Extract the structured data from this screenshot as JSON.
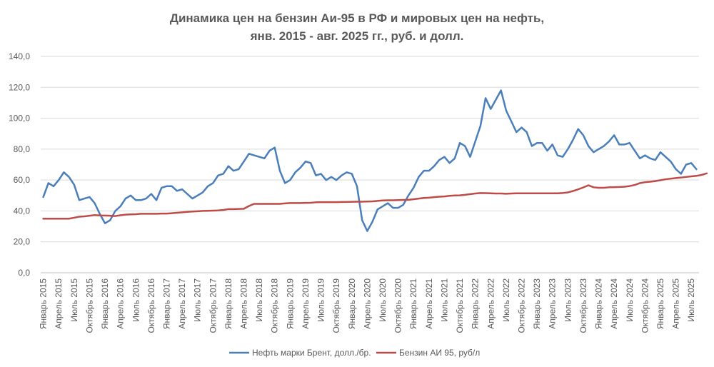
{
  "chart_data": {
    "type": "line",
    "title": "Динамика  цен на бензин Аи-95 в РФ и мировых цен на нефть,",
    "subtitle": "янв. 2015 - авг. 2025 гг., руб. и долл.",
    "ylim": [
      0,
      140
    ],
    "yticks": [
      "0,0",
      "20,0",
      "40,0",
      "60,0",
      "80,0",
      "100,0",
      "120,0",
      "140,0"
    ],
    "grid": true,
    "legend_position": "bottom",
    "x_tick_labels": [
      "Январь 2015",
      "Апрель 2015",
      "Июль 2015",
      "Октябрь 2015",
      "Январь 2016",
      "Апрель 2016",
      "Июль 2016",
      "Октябрь 2016",
      "Январь 2017",
      "Апрель 2017",
      "Июль 2017",
      "Октябрь 2017",
      "Январь 2018",
      "Апрель 2018",
      "Июль 2018",
      "Октябрь 2018",
      "Январь 2019",
      "Апрель 2019",
      "Июль 2019",
      "Октябрь 2019",
      "Январь 2020",
      "Апрель 2020",
      "Июль 2020",
      "Октябрь 2020",
      "Январь 2021",
      "Апрель 2021",
      "Июль 2021",
      "Октябрь 2021",
      "Январь 2022",
      "Апрель 2022",
      "Июль 2022",
      "Октябрь 2022",
      "Январь 2023",
      "Апрель 2023",
      "Июль 2023",
      "Октябрь 2023",
      "Январь 2024",
      "Апрель 2024",
      "Июль 2024",
      "Октябрь 2024",
      "Январь 2025",
      "Апрель 2025",
      "Июль 2025"
    ],
    "series": [
      {
        "name": "Нефть марки Брент, долл./бр.",
        "color": "#4a7ebb",
        "values": [
          49.0,
          58.0,
          56.0,
          60.0,
          65.0,
          62.0,
          57.0,
          47.0,
          48.0,
          49.0,
          45.0,
          38.0,
          32.0,
          34.0,
          40.0,
          43.0,
          48.0,
          50.0,
          47.0,
          47.0,
          48.0,
          51.0,
          47.0,
          55.0,
          56.0,
          56.0,
          53.0,
          54.0,
          51.0,
          48.0,
          50.0,
          52.0,
          56.0,
          58.0,
          63.0,
          64.0,
          69.0,
          66.0,
          67.0,
          72.0,
          77.0,
          76.0,
          75.0,
          74.0,
          79.0,
          81.0,
          66.0,
          58.0,
          60.0,
          65.0,
          68.0,
          72.0,
          71.0,
          63.0,
          64.0,
          60.0,
          62.0,
          60.0,
          63.0,
          65.0,
          64.0,
          56.0,
          34.0,
          27.0,
          33.0,
          41.0,
          43.0,
          45.0,
          42.0,
          42.0,
          44.0,
          50.0,
          55.0,
          62.0,
          66.0,
          66.0,
          69.0,
          73.0,
          75.0,
          71.0,
          74.0,
          84.0,
          82.0,
          75.0,
          85.0,
          95.0,
          113.0,
          106.0,
          112.0,
          118.0,
          105.0,
          98.0,
          91.0,
          94.0,
          91.0,
          82.0,
          84.0,
          84.0,
          79.0,
          83.0,
          76.0,
          75.0,
          80.0,
          86.0,
          93.0,
          89.0,
          82.0,
          78.0,
          80.0,
          82.0,
          85.0,
          89.0,
          83.0,
          83.0,
          84.0,
          79.0,
          74.0,
          76.0,
          74.0,
          73.0,
          78.0,
          75.0,
          72.0,
          67.0,
          64.0,
          70.0,
          71.0,
          67.0
        ]
      },
      {
        "name": "Бензин АИ 95, руб/л",
        "color": "#be4b48",
        "values": [
          35.0,
          35.0,
          35.0,
          35.0,
          35.0,
          35.0,
          35.6,
          36.3,
          36.5,
          36.9,
          37.3,
          37.1,
          37.0,
          36.9,
          36.7,
          37.2,
          37.6,
          37.8,
          37.9,
          38.2,
          38.2,
          38.2,
          38.2,
          38.3,
          38.3,
          38.5,
          38.8,
          39.1,
          39.4,
          39.6,
          39.8,
          40.0,
          40.1,
          40.2,
          40.3,
          40.6,
          41.2,
          41.2,
          41.3,
          41.4,
          43.2,
          44.6,
          44.6,
          44.6,
          44.6,
          44.6,
          44.6,
          44.9,
          45.1,
          45.1,
          45.1,
          45.2,
          45.3,
          45.6,
          45.7,
          45.7,
          45.7,
          45.7,
          45.8,
          45.8,
          45.9,
          46.0,
          46.0,
          46.1,
          46.2,
          46.5,
          46.8,
          46.9,
          46.9,
          47.0,
          47.1,
          47.2,
          47.6,
          48.0,
          48.4,
          48.6,
          48.9,
          49.2,
          49.4,
          49.8,
          50.0,
          50.1,
          50.4,
          50.9,
          51.3,
          51.6,
          51.5,
          51.4,
          51.3,
          51.3,
          51.1,
          51.3,
          51.4,
          51.4,
          51.4,
          51.4,
          51.4,
          51.4,
          51.4,
          51.4,
          51.4,
          51.6,
          52.0,
          52.9,
          54.0,
          55.2,
          56.6,
          55.3,
          55.0,
          55.0,
          55.3,
          55.4,
          55.5,
          55.7,
          56.1,
          56.8,
          58.0,
          58.6,
          58.9,
          59.3,
          59.9,
          60.5,
          60.9,
          61.3,
          61.6,
          62.0,
          62.4,
          62.7,
          63.3,
          64.3
        ]
      }
    ]
  }
}
